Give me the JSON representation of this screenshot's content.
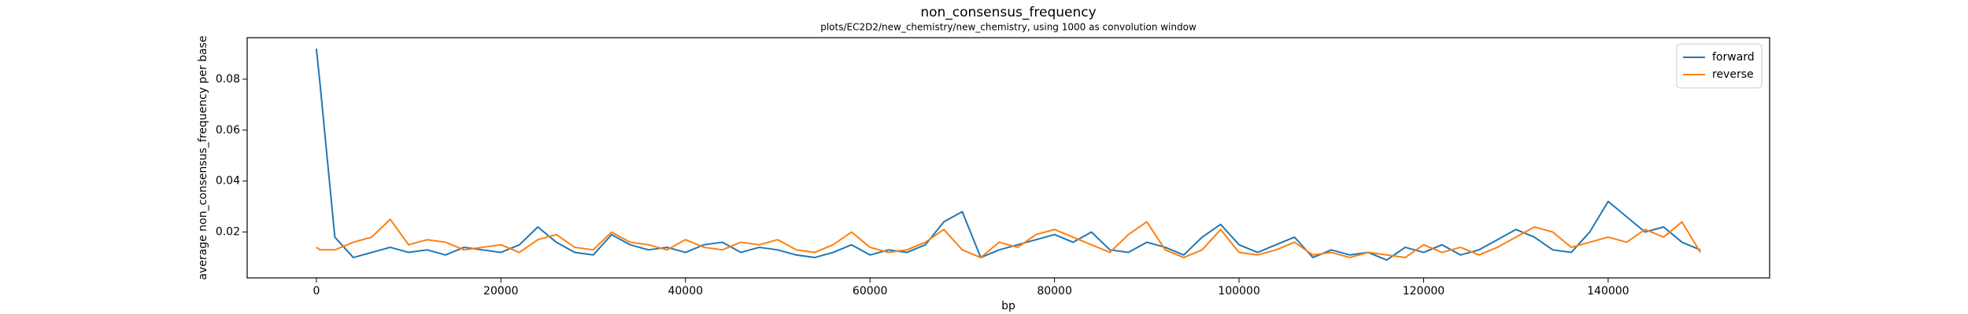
{
  "chart_data": {
    "type": "line",
    "title": "non_consensus_frequency",
    "subtitle": "plots/EC2D2/new_chemistry/new_chemistry, using 1000 as convolution window",
    "x_label": "bp",
    "y_label": "average non_consensus_frequency per base",
    "x": [
      0,
      400,
      2000,
      4000,
      6000,
      8000,
      10000,
      12000,
      14000,
      16000,
      18000,
      20000,
      22000,
      24000,
      26000,
      28000,
      30000,
      32000,
      34000,
      36000,
      38000,
      40000,
      42000,
      44000,
      46000,
      48000,
      50000,
      52000,
      54000,
      56000,
      58000,
      60000,
      62000,
      64000,
      66000,
      68000,
      70000,
      72000,
      74000,
      76000,
      78000,
      80000,
      82000,
      84000,
      86000,
      88000,
      90000,
      92000,
      94000,
      96000,
      98000,
      100000,
      102000,
      104000,
      106000,
      108000,
      110000,
      112000,
      114000,
      116000,
      118000,
      120000,
      122000,
      124000,
      126000,
      128000,
      130000,
      132000,
      134000,
      136000,
      138000,
      140000,
      142000,
      144000,
      146000,
      148000,
      150000
    ],
    "series": [
      {
        "name": "forward",
        "color": "#1f77b4",
        "values": [
          0.092,
          0.078,
          0.018,
          0.01,
          0.012,
          0.014,
          0.012,
          0.013,
          0.011,
          0.014,
          0.013,
          0.012,
          0.015,
          0.022,
          0.016,
          0.012,
          0.011,
          0.019,
          0.015,
          0.013,
          0.014,
          0.012,
          0.015,
          0.016,
          0.012,
          0.014,
          0.013,
          0.011,
          0.01,
          0.012,
          0.015,
          0.011,
          0.013,
          0.012,
          0.015,
          0.024,
          0.028,
          0.01,
          0.013,
          0.015,
          0.017,
          0.019,
          0.016,
          0.02,
          0.013,
          0.012,
          0.016,
          0.014,
          0.011,
          0.018,
          0.023,
          0.015,
          0.012,
          0.015,
          0.018,
          0.01,
          0.013,
          0.011,
          0.012,
          0.009,
          0.014,
          0.012,
          0.015,
          0.011,
          0.013,
          0.017,
          0.021,
          0.018,
          0.013,
          0.012,
          0.02,
          0.032,
          0.026,
          0.02,
          0.022,
          0.016,
          0.013
        ]
      },
      {
        "name": "reverse",
        "color": "#ff7f0e",
        "values": [
          0.014,
          0.013,
          0.013,
          0.016,
          0.018,
          0.025,
          0.015,
          0.017,
          0.016,
          0.013,
          0.014,
          0.015,
          0.012,
          0.017,
          0.019,
          0.014,
          0.013,
          0.02,
          0.016,
          0.015,
          0.013,
          0.017,
          0.014,
          0.013,
          0.016,
          0.015,
          0.017,
          0.013,
          0.012,
          0.015,
          0.02,
          0.014,
          0.012,
          0.013,
          0.016,
          0.021,
          0.013,
          0.01,
          0.016,
          0.014,
          0.019,
          0.021,
          0.018,
          0.015,
          0.012,
          0.019,
          0.024,
          0.013,
          0.01,
          0.013,
          0.021,
          0.012,
          0.011,
          0.013,
          0.016,
          0.011,
          0.012,
          0.01,
          0.012,
          0.011,
          0.01,
          0.015,
          0.012,
          0.014,
          0.011,
          0.014,
          0.018,
          0.022,
          0.02,
          0.014,
          0.016,
          0.018,
          0.016,
          0.021,
          0.018,
          0.024,
          0.012
        ]
      }
    ],
    "xlim": [
      -7500,
      157500
    ],
    "ylim": [
      0.002,
      0.0963
    ],
    "xticks": [
      0,
      20000,
      40000,
      60000,
      80000,
      100000,
      120000,
      140000
    ],
    "yticks": [
      0.02,
      0.04,
      0.06,
      0.08
    ],
    "legend": "upper right"
  }
}
